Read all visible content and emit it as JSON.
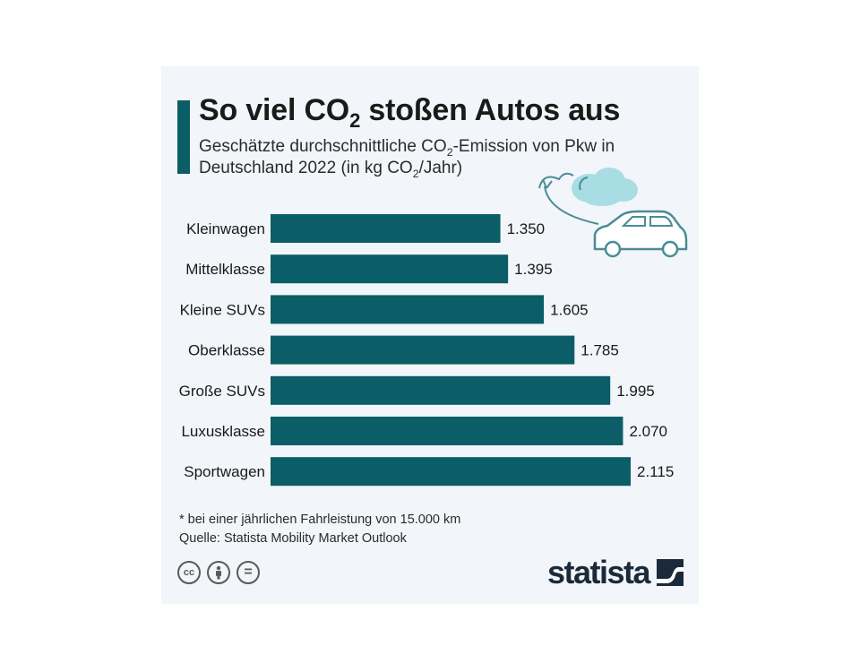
{
  "title_main": "So viel CO",
  "title_sub": "2",
  "title_rest": " stoßen Autos aus",
  "subtitle_line1_a": "Geschätzte durchschnittliche CO",
  "subtitle_line1_sub": "2",
  "subtitle_line1_b": "-Emission von Pkw in",
  "subtitle_line2_a": "Deutschland 2022 (in kg CO",
  "subtitle_line2_sub": "2",
  "subtitle_line2_b": "/Jahr)",
  "footnote": "* bei einer jährlichen Fahrleistung von 15.000 km",
  "source": "Quelle: Statista Mobility Market Outlook",
  "logo_text": "statista",
  "license_icons": [
    "cc-icon",
    "attribution-icon",
    "no-derivatives-icon"
  ],
  "license_labels": [
    "cc",
    "",
    "="
  ],
  "colors": {
    "bar": "#0b5e67",
    "background": "#f2f5f9",
    "accent": "#0b5e67"
  },
  "chart_data": {
    "type": "bar",
    "orientation": "horizontal",
    "categories": [
      "Kleinwagen",
      "Mittelklasse",
      "Kleine SUVs",
      "Oberklasse",
      "Große SUVs",
      "Luxusklasse",
      "Sportwagen"
    ],
    "values": [
      1350,
      1395,
      1605,
      1785,
      1995,
      2070,
      2115
    ],
    "value_labels": [
      "1.350",
      "1.395",
      "1.605",
      "1.785",
      "1.995",
      "2.070",
      "2.115"
    ],
    "xlim": [
      0,
      2115
    ],
    "grid": false,
    "legend": "none"
  }
}
